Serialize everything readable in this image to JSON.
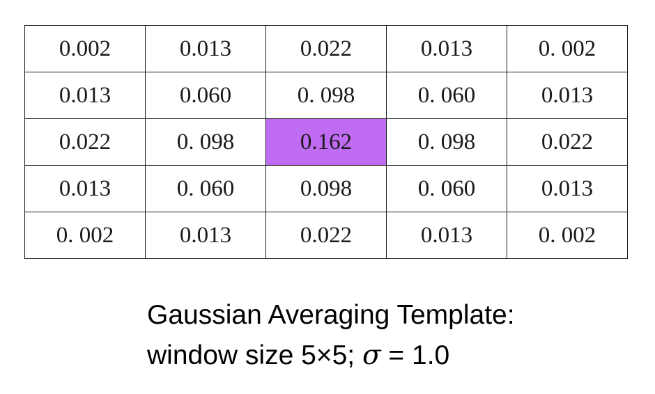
{
  "table": {
    "rows": [
      [
        "0.002",
        "0.013",
        "0.022",
        "0.013",
        "0. 002"
      ],
      [
        "0.013",
        "0.060",
        "0. 098",
        "0. 060",
        "0.013"
      ],
      [
        "0.022",
        "0. 098",
        "0.162",
        "0. 098",
        "0.022"
      ],
      [
        "0.013",
        "0. 060",
        "0.098",
        "0. 060",
        "0.013"
      ],
      [
        "0. 002",
        "0.013",
        "0.022",
        "0.013",
        "0. 002"
      ]
    ],
    "highlight_color": "#bf6bf2"
  },
  "caption": {
    "line1": "Gaussian Averaging Template:",
    "line2_prefix": "window size 5",
    "times_symbol": "×",
    "line2_mid": "5; ",
    "sigma_symbol": "σ",
    "line2_suffix": " = 1.0"
  }
}
